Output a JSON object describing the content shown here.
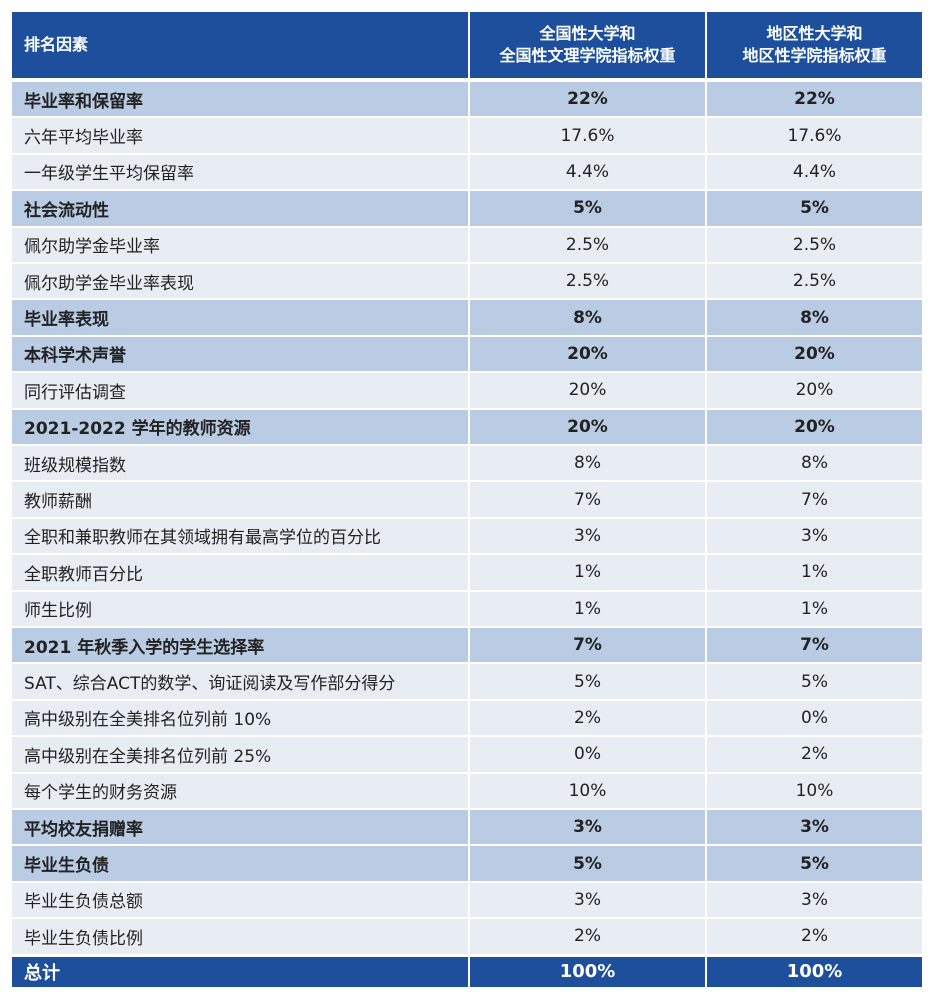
{
  "table": {
    "header": [
      "排名因素",
      "全国性大学和\n全国性文理学院指标权重",
      "地区性大学和\n地区性学院指标权重"
    ],
    "rows": [
      [
        "毕业率和保留率",
        "22%",
        "22%"
      ],
      [
        "六年平均毕业率",
        "17.6%",
        "17.6%"
      ],
      [
        "一年级学生平均保留率",
        "4.4%",
        "4.4%"
      ],
      [
        "社会流动性",
        "5%",
        "5%"
      ],
      [
        "佩尔助学金毕业率",
        "2.5%",
        "2.5%"
      ],
      [
        "佩尔助学金毕业率表现",
        "2.5%",
        "2.5%"
      ],
      [
        "毕业率表现",
        "8%",
        "8%"
      ],
      [
        "本科学术声誉",
        "20%",
        "20%"
      ],
      [
        "同行评估调查",
        "20%",
        "20%"
      ],
      [
        "2021-2022 学年的教师资源",
        "20%",
        "20%"
      ],
      [
        "班级规模指数",
        "8%",
        "8%"
      ],
      [
        "教师薪酬",
        "7%",
        "7%"
      ],
      [
        "全职和兼职教师在其领域拥有最高学位的百分比",
        "3%",
        "3%"
      ],
      [
        "全职教师百分比",
        "1%",
        "1%"
      ],
      [
        "师生比例",
        "1%",
        "1%"
      ],
      [
        "2021 年秋季入学的学生选择率",
        "7%",
        "7%"
      ],
      [
        "SAT、综合ACT的数学、询证阅读及写作部分得分",
        "5%",
        "5%"
      ],
      [
        "高中级别在全美排名位列前 10%",
        "2%",
        "0%"
      ],
      [
        "高中级别在全美排名位列前 25%",
        "0%",
        "2%"
      ],
      [
        "每个学生的财务资源",
        "10%",
        "10%"
      ],
      [
        "平均校友捐赠率",
        "3%",
        "3%"
      ],
      [
        "毕业生负债",
        "5%",
        "5%"
      ],
      [
        "毕业生负债总额",
        "3%",
        "3%"
      ],
      [
        "毕业生负债比例",
        "2%",
        "2%"
      ]
    ],
    "total": [
      "总计",
      "100%",
      "100%"
    ]
  }
}
